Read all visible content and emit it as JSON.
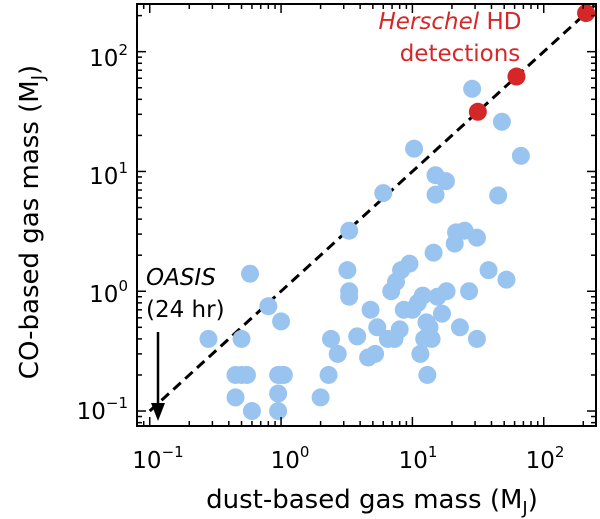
{
  "chart_data": {
    "type": "scatter",
    "xscale": "log",
    "yscale": "log",
    "xlim": [
      0.08,
      250
    ],
    "ylim": [
      0.075,
      250
    ],
    "xlabel": {
      "text": "dust-based gas mass (M",
      "sub": "J",
      "close": ")"
    },
    "ylabel": {
      "text": "CO-based gas mass (M",
      "sub": "J",
      "close": ")"
    },
    "xticks": [
      {
        "value": 0.1,
        "base": "10",
        "exp": "−1"
      },
      {
        "value": 1,
        "base": "10",
        "exp": "0"
      },
      {
        "value": 10,
        "base": "10",
        "exp": "1"
      },
      {
        "value": 100,
        "base": "10",
        "exp": "2"
      }
    ],
    "yticks": [
      {
        "value": 0.1,
        "base": "10",
        "exp": "−1"
      },
      {
        "value": 1,
        "base": "10",
        "exp": "0"
      },
      {
        "value": 10,
        "base": "10",
        "exp": "1"
      },
      {
        "value": 100,
        "base": "10",
        "exp": "2"
      }
    ],
    "reference_line": {
      "style": "dashed",
      "color": "#000000",
      "from": [
        0.1,
        0.1
      ],
      "to": [
        250,
        250
      ]
    },
    "series": [
      {
        "color": "#99c4f0",
        "points": [
          [
            0.28,
            0.4
          ],
          [
            0.45,
            0.2
          ],
          [
            0.5,
            0.2
          ],
          [
            0.45,
            0.13
          ],
          [
            0.55,
            0.2
          ],
          [
            0.6,
            0.1
          ],
          [
            0.5,
            0.4
          ],
          [
            0.58,
            1.4
          ],
          [
            0.8,
            0.75
          ],
          [
            0.95,
            0.2
          ],
          [
            1.0,
            0.2
          ],
          [
            1.05,
            0.2
          ],
          [
            0.95,
            0.14
          ],
          [
            0.95,
            0.1
          ],
          [
            1.0,
            0.56
          ],
          [
            2.0,
            0.13
          ],
          [
            2.3,
            0.2
          ],
          [
            2.4,
            0.4
          ],
          [
            2.7,
            0.3
          ],
          [
            3.2,
            1.5
          ],
          [
            3.3,
            1.0
          ],
          [
            3.3,
            0.9
          ],
          [
            3.3,
            3.2
          ],
          [
            3.8,
            0.42
          ],
          [
            4.6,
            0.28
          ],
          [
            4.8,
            0.7
          ],
          [
            5.2,
            0.3
          ],
          [
            5.4,
            0.5
          ],
          [
            6.0,
            6.6
          ],
          [
            6.5,
            0.4
          ],
          [
            6.9,
            1.0
          ],
          [
            7.3,
            0.4
          ],
          [
            7.5,
            1.2
          ],
          [
            8.0,
            0.48
          ],
          [
            8.2,
            1.5
          ],
          [
            8.6,
            0.7
          ],
          [
            9.5,
            1.7
          ],
          [
            10.0,
            0.7
          ],
          [
            10.3,
            15.5
          ],
          [
            11.0,
            0.8
          ],
          [
            12.0,
            0.92
          ],
          [
            11.5,
            0.3
          ],
          [
            12.3,
            0.4
          ],
          [
            12.8,
            0.55
          ],
          [
            13.0,
            0.2
          ],
          [
            13.5,
            0.5
          ],
          [
            14.0,
            0.4
          ],
          [
            14.5,
            2.1
          ],
          [
            15.0,
            6.4
          ],
          [
            15.5,
            0.9
          ],
          [
            15.0,
            9.3
          ],
          [
            16.8,
            0.65
          ],
          [
            18.0,
            8.3
          ],
          [
            18.2,
            1.0
          ],
          [
            21.0,
            2.5
          ],
          [
            21.5,
            3.1
          ],
          [
            23.0,
            0.5
          ],
          [
            25.0,
            3.2
          ],
          [
            27.0,
            1.0
          ],
          [
            28.5,
            49
          ],
          [
            31.0,
            2.8
          ],
          [
            31.0,
            0.4
          ],
          [
            38.0,
            1.5
          ],
          [
            45.0,
            6.3
          ],
          [
            48.0,
            26
          ],
          [
            52.0,
            1.25
          ],
          [
            67.0,
            13.5
          ]
        ]
      },
      {
        "color": "#d62728",
        "points": [
          [
            31.5,
            31.5
          ],
          [
            62,
            62
          ],
          [
            210,
            210
          ]
        ]
      }
    ],
    "annotations": [
      {
        "id": "herschel",
        "italic": "Herschel",
        "rest": " HD",
        "line2": "detections",
        "color": "#d62728"
      },
      {
        "id": "oasis",
        "line1": "OASIS",
        "line2": "(24 hr)",
        "arrow_to": [
          0.1,
          0.075
        ]
      }
    ]
  }
}
